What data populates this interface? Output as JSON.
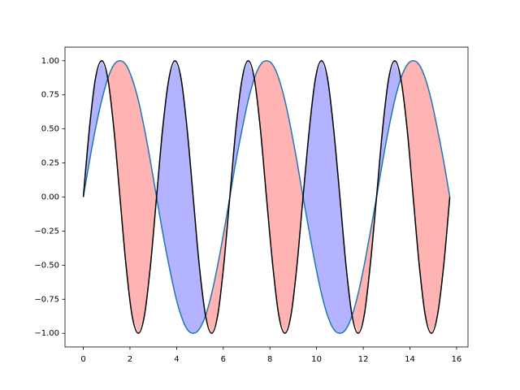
{
  "chart_data": {
    "type": "line-fill-between",
    "x": [
      0,
      0.26,
      0.52,
      0.79,
      1.05,
      1.31,
      1.57,
      1.83,
      2.09,
      2.36,
      2.62,
      2.88,
      3.14,
      3.4,
      3.67,
      3.93,
      4.19,
      4.45,
      4.71,
      4.97,
      5.24,
      5.5,
      5.76,
      6.02,
      6.28,
      6.54,
      6.81,
      7.07,
      7.33,
      7.59,
      7.85,
      8.12,
      8.38,
      8.64,
      8.9,
      9.16,
      9.42,
      9.69,
      9.95,
      10.21,
      10.47,
      10.73,
      11.0,
      11.26,
      11.52,
      11.78,
      12.04,
      12.3,
      12.57,
      12.83,
      13.09,
      13.35,
      13.61,
      13.88,
      14.14,
      14.4,
      14.66,
      14.92,
      15.18,
      15.45,
      15.71
    ],
    "series": [
      {
        "color": "#1f77b4",
        "fill": "#ffb3b3",
        "values": [
          0,
          0.26,
          0.5,
          0.71,
          0.87,
          0.97,
          1,
          0.97,
          0.87,
          0.71,
          0.5,
          0.26,
          0,
          -0.26,
          -0.5,
          -0.71,
          -0.87,
          -0.97,
          -1,
          -0.97,
          -0.87,
          -0.71,
          -0.5,
          -0.26,
          0,
          0.26,
          0.5,
          0.71,
          0.87,
          0.97,
          1,
          0.97,
          0.87,
          0.71,
          0.5,
          0.26,
          0,
          -0.26,
          -0.5,
          -0.71,
          -0.87,
          -0.97,
          -1,
          -0.97,
          -0.87,
          -0.71,
          -0.5,
          -0.26,
          0,
          0.26,
          0.5,
          0.71,
          0.87,
          0.97,
          1,
          0.97,
          0.87,
          0.71,
          0.5,
          0.26,
          0
        ]
      },
      {
        "color": "#000000",
        "fill": "#b3b3ff",
        "values": [
          0,
          0.5,
          0.87,
          1,
          0.87,
          0.5,
          0,
          -0.5,
          -0.87,
          -1,
          -0.87,
          -0.5,
          0,
          0.5,
          0.87,
          1,
          0.87,
          0.5,
          0,
          -0.5,
          -0.87,
          -1,
          -0.87,
          -0.5,
          0,
          0.5,
          0.87,
          1,
          0.87,
          0.5,
          0,
          -0.5,
          -0.87,
          -1,
          -0.87,
          -0.5,
          0,
          0.5,
          0.87,
          1,
          0.87,
          0.5,
          0,
          -0.5,
          -0.87,
          -1,
          -0.87,
          -0.5,
          0,
          0.5,
          0.87,
          1,
          0.87,
          0.5,
          0,
          -0.5,
          -0.87,
          -1,
          -0.87,
          -0.5,
          0
        ]
      }
    ],
    "xlim": [
      -0.785,
      16.49
    ],
    "ylim": [
      -1.1,
      1.1
    ],
    "xticks": [
      0,
      2,
      4,
      6,
      8,
      10,
      12,
      14,
      16
    ],
    "yticks": [
      {
        "value": -1,
        "label": "−1.00"
      },
      {
        "value": -0.75,
        "label": "−0.75"
      },
      {
        "value": -0.5,
        "label": "−0.50"
      },
      {
        "value": -0.25,
        "label": "−0.25"
      },
      {
        "value": 0,
        "label": "0.00"
      },
      0.25,
      {
        "value": 0.5,
        "label": "0.50"
      },
      0.75,
      {
        "value": 1,
        "label": "1.00"
      }
    ]
  }
}
